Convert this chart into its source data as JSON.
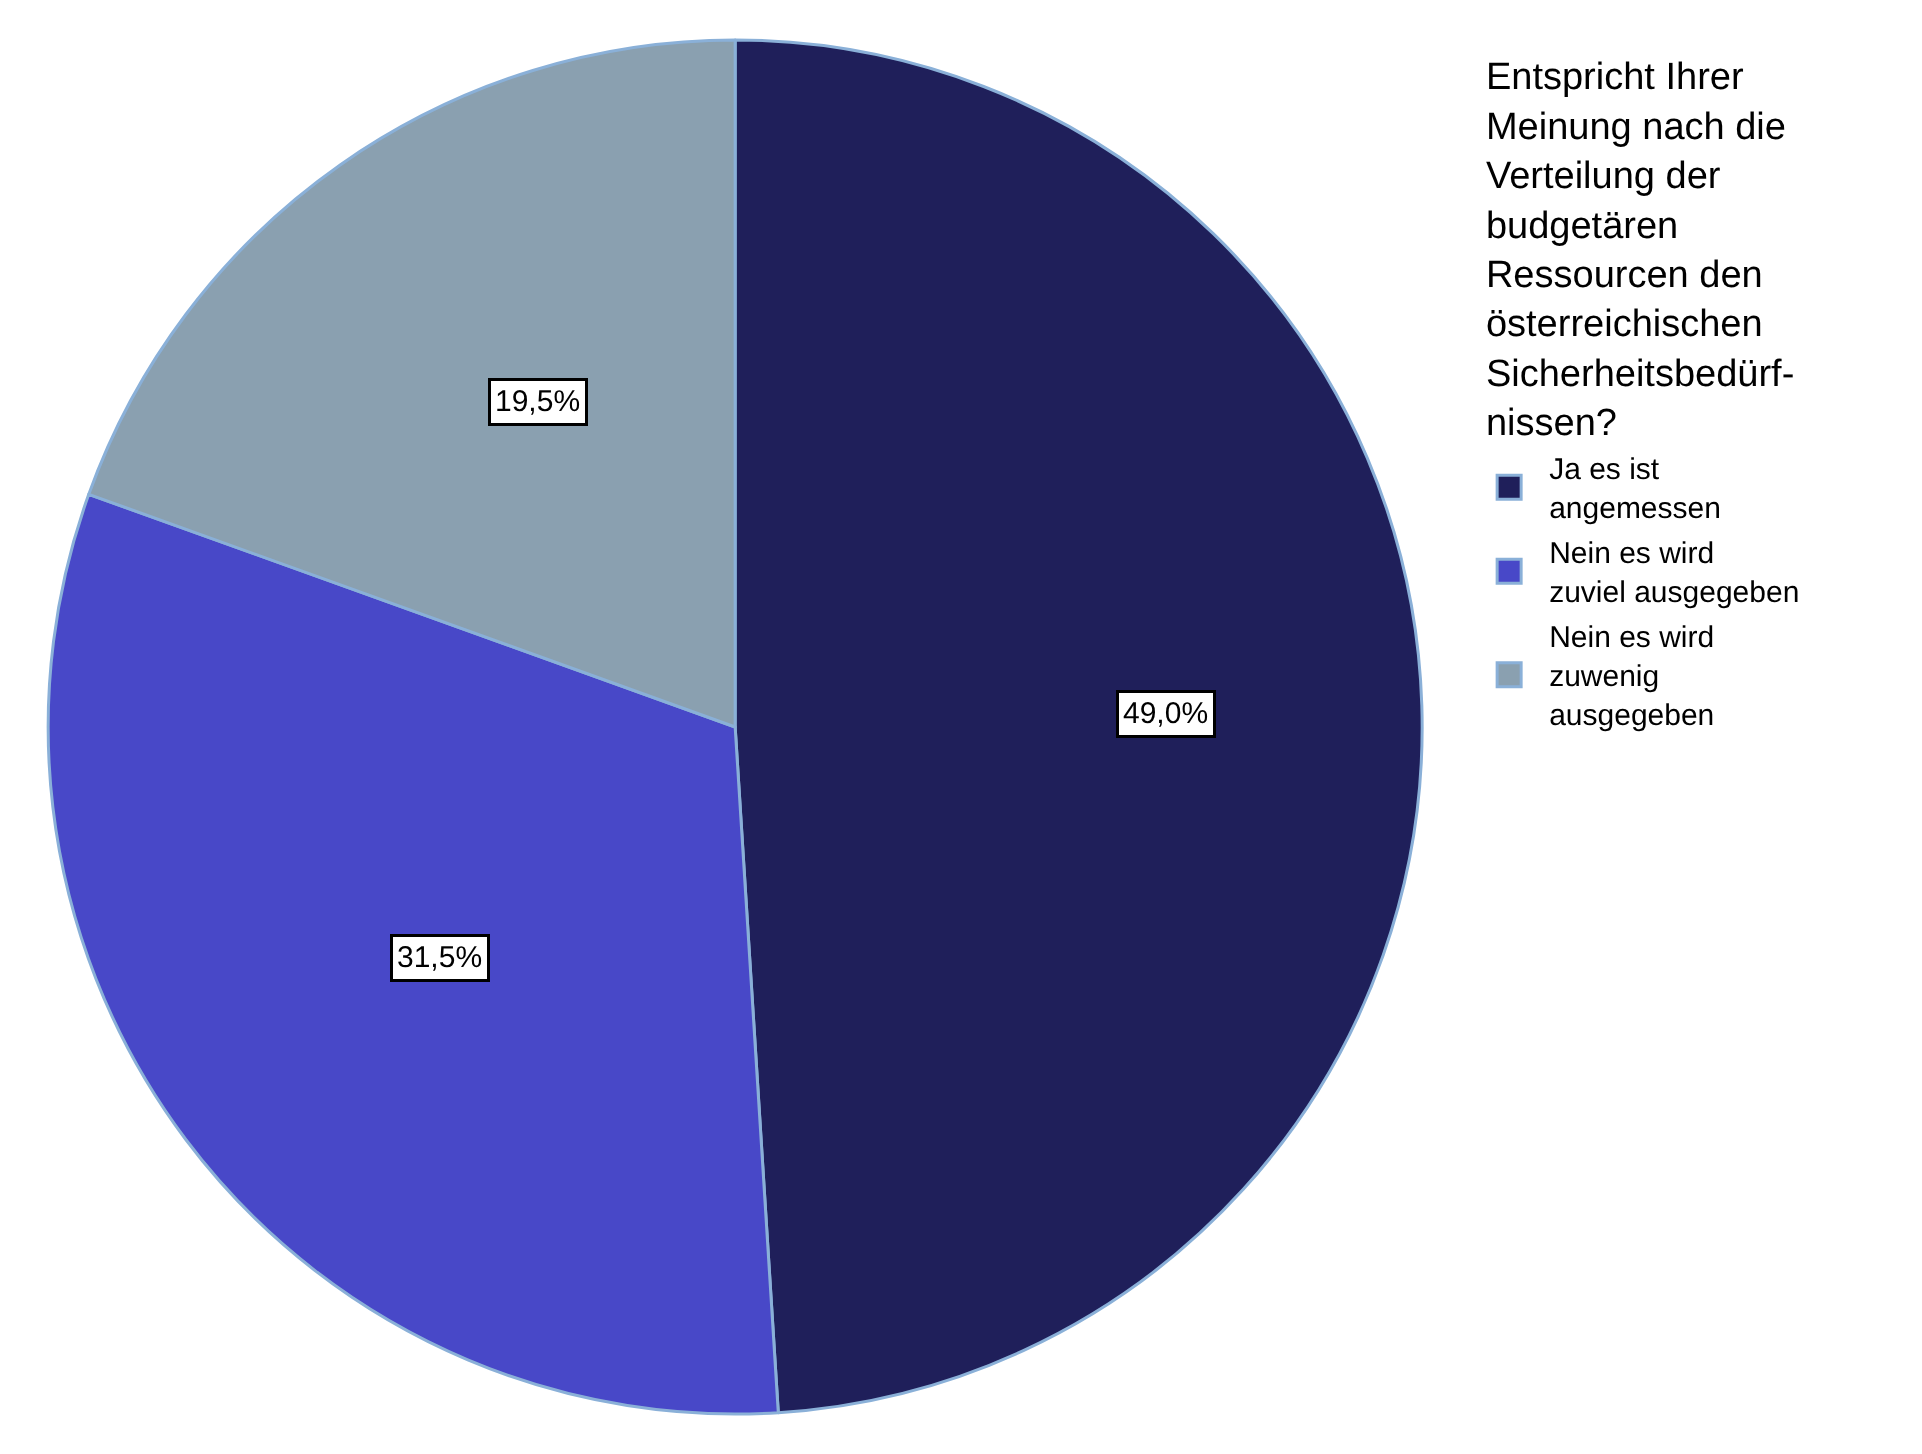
{
  "chart_data": {
    "type": "pie",
    "legend_title": "Entspricht Ihrer\nMeinung nach die\nVerteilung der\nbudgetären\nRessourcen den\nösterreichischen\nSicherheitsbedürf-\nnissen?",
    "categories": [
      "Ja es ist\nangemessen",
      "Nein es wird\nzuviel ausgegeben",
      "Nein es wird\nzuwenig\nausgegeben"
    ],
    "values": [
      49.0,
      31.5,
      19.5
    ],
    "value_labels": [
      "49,0%",
      "31,5%",
      "19,5%"
    ],
    "colors": [
      "#1f1f5a",
      "#4848c8",
      "#8aa0b0"
    ],
    "legend": "right"
  }
}
